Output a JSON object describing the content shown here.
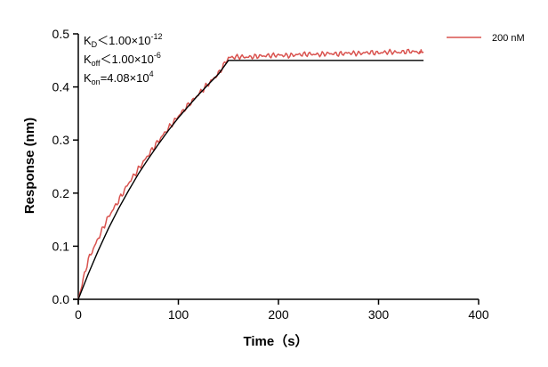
{
  "chart_data": {
    "type": "line",
    "title": "",
    "xlabel": "Time（s）",
    "ylabel": "Response (nm)",
    "xlim": [
      0,
      400
    ],
    "ylim": [
      0,
      0.5
    ],
    "x_ticks": [
      0,
      100,
      200,
      300,
      400
    ],
    "y_ticks": [
      0.0,
      0.1,
      0.2,
      0.3,
      0.4,
      0.5
    ],
    "x_tick_labels": [
      "0",
      "100",
      "200",
      "300",
      "400"
    ],
    "y_tick_labels": [
      "0.0",
      "0.1",
      "0.2",
      "0.3",
      "0.4",
      "0.5"
    ],
    "grid": false,
    "legend_position": "top-right",
    "series": [
      {
        "name": "200 nM",
        "kind": "measured",
        "color": "#d9534f",
        "x": [
          0,
          10,
          20,
          30,
          40,
          50,
          60,
          70,
          80,
          90,
          100,
          110,
          120,
          130,
          140,
          150,
          160,
          170,
          180,
          190,
          200,
          210,
          220,
          230,
          240,
          250,
          260,
          270,
          280,
          290,
          300,
          310,
          320,
          330,
          340,
          345
        ],
        "y": [
          0.0,
          0.075,
          0.115,
          0.155,
          0.185,
          0.218,
          0.245,
          0.272,
          0.298,
          0.322,
          0.345,
          0.366,
          0.386,
          0.406,
          0.425,
          0.455,
          0.457,
          0.456,
          0.458,
          0.459,
          0.46,
          0.459,
          0.461,
          0.462,
          0.461,
          0.463,
          0.462,
          0.464,
          0.463,
          0.465,
          0.464,
          0.466,
          0.465,
          0.467,
          0.466,
          0.465
        ]
      },
      {
        "name": "",
        "kind": "fit",
        "color": "#000000",
        "x": [
          0,
          10,
          20,
          30,
          40,
          50,
          60,
          70,
          80,
          90,
          100,
          110,
          120,
          130,
          140,
          150,
          200,
          250,
          300,
          345
        ],
        "y": [
          0.0,
          0.048,
          0.092,
          0.133,
          0.17,
          0.204,
          0.236,
          0.265,
          0.292,
          0.318,
          0.342,
          0.364,
          0.385,
          0.405,
          0.424,
          0.45,
          0.45,
          0.45,
          0.45,
          0.45
        ]
      }
    ],
    "annotations": [
      {
        "main": "K",
        "sub": "D",
        "rest": "＜1.00×10",
        "sup": "-12"
      },
      {
        "main": "K",
        "sub": "off",
        "rest": "＜1.00×10",
        "sup": "-6"
      },
      {
        "main": "K",
        "sub": "on",
        "rest": "=4.08×10",
        "sup": "4"
      }
    ]
  }
}
